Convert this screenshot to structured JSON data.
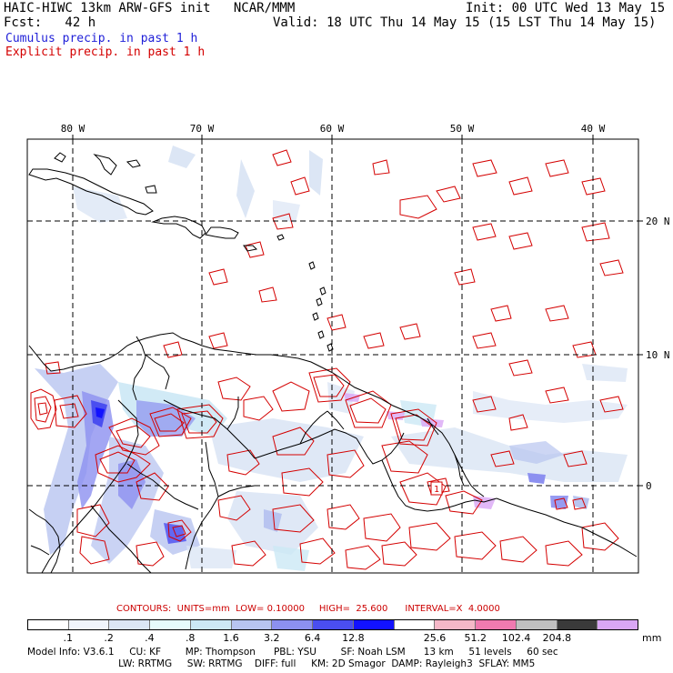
{
  "header": {
    "model_title": "HAIC-HIWC 13km ARW-GFS init   NCAR/MMM",
    "init": "Init: 00 UTC Wed 13 May 15",
    "fcst": "Fcst:   42 h",
    "valid": "Valid: 18 UTC Thu 14 May 15 (15 LST Thu 14 May 15)",
    "cumulus_label": "Cumulus precip. in past 1 h",
    "explicit_label": "Explicit precip. in past 1 h"
  },
  "colors": {
    "cumulus": "#1f1fd8",
    "explicit": "#d40000",
    "land": "#000000",
    "grid": "#000000"
  },
  "map": {
    "lon_labels": [
      "80 W",
      "70 W",
      "60 W",
      "50 W",
      "40 W"
    ],
    "lat_labels": [
      "20 N",
      "10 N",
      "0"
    ],
    "hilo_label": "1"
  },
  "contours": {
    "text": "CONTOURS:  UNITS=mm  LOW= 0.10000     HIGH=  25.600      INTERVAL=X  4.0000"
  },
  "colorbar": {
    "colors": [
      "#ffffff",
      "#f0f4fb",
      "#dce6f5",
      "#e6fbfb",
      "#cce8f5",
      "#b8c4f0",
      "#8c90f0",
      "#4a4ef0",
      "#1212ff",
      "#ffffff",
      "#f5b8c8",
      "#f07ab0",
      "#c0c0c0",
      "#3a3a3a",
      "#d9a6f5"
    ],
    "labels": [
      ".1",
      ".2",
      ".4",
      ".8",
      "1.6",
      "3.2",
      "6.4",
      "12.8",
      "25.6",
      "51.2",
      "102.4",
      "204.8"
    ],
    "units": "mm"
  },
  "model_info": {
    "line1": "Model Info: V3.6.1     CU: KF        MP: Thompson      PBL: YSU        SF: Noah LSM      13 km     51 levels     60 sec",
    "line2": "                              LW: RRTMG     SW: RRTMG    DIFF: full     KM: 2D Smagor  DAMP: Rayleigh3  SFLAY: MM5"
  }
}
